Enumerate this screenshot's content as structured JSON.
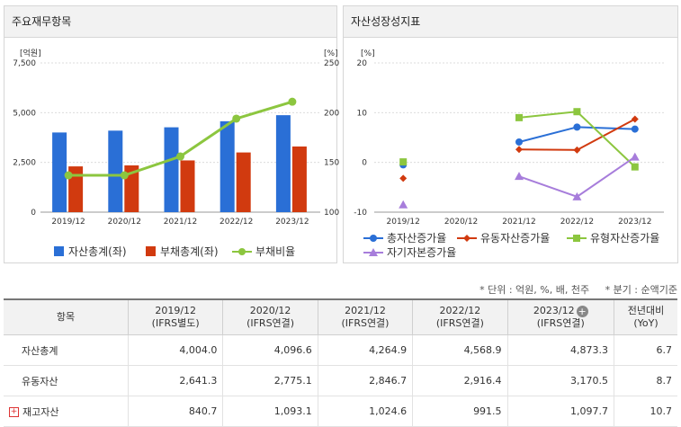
{
  "left_panel": {
    "title": "주요재무항목"
  },
  "right_panel": {
    "title": "자산성장성지표"
  },
  "chart_data": [
    {
      "type": "bar",
      "categories": [
        "2019/12",
        "2020/12",
        "2021/12",
        "2022/12",
        "2023/12"
      ],
      "y_left_unit": "[억원]",
      "y_right_unit": "[%]",
      "y_left_ticks": [
        "7,500",
        "5,000",
        "2,500",
        "0"
      ],
      "y_right_ticks": [
        "250",
        "200",
        "150",
        "100"
      ],
      "ylim_left": [
        0,
        7500
      ],
      "ylim_right": [
        100,
        250
      ],
      "series": [
        {
          "name": "자산총계(좌)",
          "type": "bar",
          "axis": "left",
          "color": "#2a6fd6",
          "values": [
            4004.0,
            4096.6,
            4264.9,
            4568.9,
            4873.3
          ]
        },
        {
          "name": "부채총계(좌)",
          "type": "bar",
          "axis": "left",
          "color": "#d13a0f",
          "values": [
            2300,
            2350,
            2600,
            3000,
            3300
          ]
        },
        {
          "name": "부채비율",
          "type": "line",
          "axis": "right",
          "color": "#8cc63f",
          "values": [
            137,
            137,
            156,
            194,
            211
          ]
        }
      ],
      "grid": true,
      "legend": "bottom"
    },
    {
      "type": "line",
      "categories": [
        "2019/12",
        "2020/12",
        "2021/12",
        "2022/12",
        "2023/12"
      ],
      "y_unit": "[%]",
      "y_ticks": [
        "20",
        "10",
        "0",
        "-10"
      ],
      "ylim": [
        -10,
        20
      ],
      "series": [
        {
          "name": "총자산증가율",
          "color": "#2a6fd6",
          "marker": "circle",
          "values": [
            -0.5,
            null,
            4.1,
            7.1,
            6.7
          ]
        },
        {
          "name": "유동자산증가율",
          "color": "#d13a0f",
          "marker": "diamond",
          "values": [
            -3.2,
            null,
            2.6,
            2.5,
            8.7
          ]
        },
        {
          "name": "유형자산증가율",
          "color": "#8cc63f",
          "marker": "square",
          "values": [
            0.1,
            null,
            9.0,
            10.2,
            -0.9
          ]
        },
        {
          "name": "자기자본증가율",
          "color": "#a77ddb",
          "marker": "triangle",
          "values": [
            -8.5,
            null,
            -2.8,
            -6.9,
            1.1
          ]
        }
      ],
      "grid": true,
      "legend": "bottom"
    }
  ],
  "units_note": "* 단위 : 억원, %, 배, 천주     * 분기 : 순액기준",
  "table": {
    "header_item": "항목",
    "columns": [
      {
        "year": "2019/12",
        "basis": "(IFRS별도)"
      },
      {
        "year": "2020/12",
        "basis": "(IFRS연결)"
      },
      {
        "year": "2021/12",
        "basis": "(IFRS연결)"
      },
      {
        "year": "2022/12",
        "basis": "(IFRS연결)"
      },
      {
        "year": "2023/12",
        "basis": "(IFRS연결)"
      }
    ],
    "yoy_title": "전년대비",
    "yoy_sub": "(YoY)",
    "rows": [
      {
        "label": "자산총계",
        "values": [
          "4,004.0",
          "4,096.6",
          "4,264.9",
          "4,568.9",
          "4,873.3"
        ],
        "yoy": "6.7",
        "expandable": false
      },
      {
        "label": "유동자산",
        "values": [
          "2,641.3",
          "2,775.1",
          "2,846.7",
          "2,916.4",
          "3,170.5"
        ],
        "yoy": "8.7",
        "expandable": false
      },
      {
        "label": "재고자산",
        "values": [
          "840.7",
          "1,093.1",
          "1,024.6",
          "991.5",
          "1,097.7"
        ],
        "yoy": "10.7",
        "expandable": true
      }
    ]
  }
}
